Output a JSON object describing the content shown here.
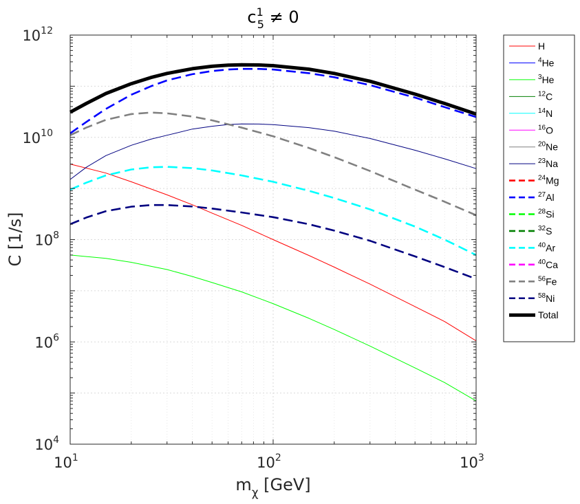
{
  "chart_data": {
    "type": "line",
    "title": {
      "base": "c",
      "sup": "1",
      "sub": "5",
      "rest": " ≠ 0"
    },
    "xlabel": {
      "base": "m",
      "sub": "χ",
      "rest": " [GeV]"
    },
    "ylabel": "C [1/s]",
    "xscale": "log",
    "yscale": "log",
    "xlim": [
      10,
      1000
    ],
    "ylim": [
      10000,
      1000000000000
    ],
    "grid": true,
    "legend_position": "outside-right",
    "xticks": [
      {
        "base": "10",
        "exp": "1",
        "value": 10
      },
      {
        "base": "10",
        "exp": "2",
        "value": 100
      },
      {
        "base": "10",
        "exp": "3",
        "value": 1000
      }
    ],
    "yticks": [
      {
        "base": "10",
        "exp": "4",
        "value": 10000
      },
      {
        "base": "10",
        "exp": "6",
        "value": 1000000
      },
      {
        "base": "10",
        "exp": "8",
        "value": 100000000
      },
      {
        "base": "10",
        "exp": "10",
        "value": 10000000000
      },
      {
        "base": "10",
        "exp": "12",
        "value": 1000000000000
      }
    ],
    "series": [
      {
        "key": "H",
        "sup": "",
        "label": "H",
        "color": "#ff0000",
        "dashed": false,
        "width": "thin",
        "points": [
          [
            10,
            3000000000.0
          ],
          [
            15,
            2000000000.0
          ],
          [
            20,
            1350000000.0
          ],
          [
            30,
            750000000.0
          ],
          [
            40,
            480000000.0
          ],
          [
            50,
            330000000.0
          ],
          [
            70,
            190000000.0
          ],
          [
            100,
            100000000.0
          ],
          [
            150,
            49000000.0
          ],
          [
            200,
            29000000.0
          ],
          [
            300,
            13500000.0
          ],
          [
            500,
            4900000.0
          ],
          [
            700,
            2500000.0
          ],
          [
            1000,
            1050000.0
          ]
        ]
      },
      {
        "key": "He4",
        "sup": "4",
        "label": "He",
        "color": "#0000ff",
        "dashed": false,
        "width": "thin",
        "points": []
      },
      {
        "key": "He3",
        "sup": "3",
        "label": "He",
        "color": "#00ff00",
        "dashed": false,
        "width": "thin",
        "points": [
          [
            10,
            50000000.0
          ],
          [
            15,
            43000000.0
          ],
          [
            20,
            36000000.0
          ],
          [
            30,
            26000000.0
          ],
          [
            40,
            19000000.0
          ],
          [
            50,
            14500000.0
          ],
          [
            70,
            9500000.0
          ],
          [
            100,
            5600000.0
          ],
          [
            150,
            2900000.0
          ],
          [
            200,
            1750000.0
          ],
          [
            300,
            830000.0
          ],
          [
            500,
            310000.0
          ],
          [
            700,
            160000.0
          ],
          [
            1000,
            70000.0
          ]
        ]
      },
      {
        "key": "C12",
        "sup": "12",
        "label": "C",
        "color": "#007f00",
        "dashed": false,
        "width": "thin",
        "points": []
      },
      {
        "key": "N14",
        "sup": "14",
        "label": "N",
        "color": "#00ffff",
        "dashed": false,
        "width": "thin",
        "points": []
      },
      {
        "key": "O16",
        "sup": "16",
        "label": "O",
        "color": "#ff00ff",
        "dashed": false,
        "width": "thin",
        "points": []
      },
      {
        "key": "Ne20",
        "sup": "20",
        "label": "Ne",
        "color": "#808080",
        "dashed": false,
        "width": "thin",
        "points": []
      },
      {
        "key": "Na23",
        "sup": "23",
        "label": "Na",
        "color": "#000080",
        "dashed": false,
        "width": "thin",
        "points": [
          [
            10,
            1500000000.0
          ],
          [
            12,
            2600000000.0
          ],
          [
            15,
            4400000000.0
          ],
          [
            20,
            7000000000.0
          ],
          [
            25,
            9200000000.0
          ],
          [
            30,
            11000000000.0
          ],
          [
            40,
            14500000000.0
          ],
          [
            50,
            16500000000.0
          ],
          [
            60,
            17800000000.0
          ],
          [
            70,
            18300000000.0
          ],
          [
            85,
            18200000000.0
          ],
          [
            100,
            17700000000.0
          ],
          [
            150,
            15500000000.0
          ],
          [
            200,
            13200000000.0
          ],
          [
            300,
            9500000000.0
          ],
          [
            500,
            5600000000.0
          ],
          [
            700,
            3800000000.0
          ],
          [
            1000,
            2450000000.0
          ]
        ]
      },
      {
        "key": "Mg24",
        "sup": "24",
        "label": "Mg",
        "color": "#ff0000",
        "dashed": true,
        "width": "thick",
        "points": []
      },
      {
        "key": "Al27",
        "sup": "27",
        "label": "Al",
        "color": "#0000ff",
        "dashed": true,
        "width": "thick",
        "points": [
          [
            10,
            12000000000.0
          ],
          [
            12,
            20000000000.0
          ],
          [
            15,
            36000000000.0
          ],
          [
            20,
            68000000000.0
          ],
          [
            25,
            100000000000.0
          ],
          [
            30,
            130000000000.0
          ],
          [
            40,
            172000000000.0
          ],
          [
            50,
            198000000000.0
          ],
          [
            60,
            212000000000.0
          ],
          [
            70,
            218000000000.0
          ],
          [
            85,
            218000000000.0
          ],
          [
            100,
            212000000000.0
          ],
          [
            150,
            180000000000.0
          ],
          [
            200,
            150000000000.0
          ],
          [
            300,
            105000000000.0
          ],
          [
            500,
            60000000000.0
          ],
          [
            700,
            39000000000.0
          ],
          [
            1000,
            25000000000.0
          ]
        ]
      },
      {
        "key": "Si28",
        "sup": "28",
        "label": "Si",
        "color": "#00ff00",
        "dashed": true,
        "width": "thick",
        "points": []
      },
      {
        "key": "S32",
        "sup": "32",
        "label": "S",
        "color": "#007f00",
        "dashed": true,
        "width": "thick",
        "points": []
      },
      {
        "key": "Ar40",
        "sup": "40",
        "label": "Ar",
        "color": "#00ffff",
        "dashed": true,
        "width": "thick",
        "points": [
          [
            10,
            950000000.0
          ],
          [
            12,
            1300000000.0
          ],
          [
            15,
            1800000000.0
          ],
          [
            20,
            2350000000.0
          ],
          [
            25,
            2600000000.0
          ],
          [
            30,
            2650000000.0
          ],
          [
            40,
            2500000000.0
          ],
          [
            50,
            2250000000.0
          ],
          [
            70,
            1800000000.0
          ],
          [
            100,
            1350000000.0
          ],
          [
            150,
            900000000.0
          ],
          [
            200,
            650000000.0
          ],
          [
            300,
            390000000.0
          ],
          [
            500,
            180000000.0
          ],
          [
            700,
            100000000.0
          ],
          [
            1000,
            50000000.0
          ]
        ]
      },
      {
        "key": "Ca40",
        "sup": "40",
        "label": "Ca",
        "color": "#ff00ff",
        "dashed": true,
        "width": "thick",
        "points": []
      },
      {
        "key": "Fe56",
        "sup": "56",
        "label": "Fe",
        "color": "#808080",
        "dashed": true,
        "width": "thick",
        "points": [
          [
            10,
            11000000000.0
          ],
          [
            12,
            15500000000.0
          ],
          [
            15,
            22000000000.0
          ],
          [
            20,
            28500000000.0
          ],
          [
            25,
            30500000000.0
          ],
          [
            30,
            29500000000.0
          ],
          [
            40,
            25500000000.0
          ],
          [
            50,
            21500000000.0
          ],
          [
            70,
            15500000000.0
          ],
          [
            100,
            10500000000.0
          ],
          [
            150,
            6200000000.0
          ],
          [
            200,
            4100000000.0
          ],
          [
            300,
            2200000000.0
          ],
          [
            500,
            950000000.0
          ],
          [
            700,
            550000000.0
          ],
          [
            1000,
            300000000.0
          ]
        ]
      },
      {
        "key": "Ni58",
        "sup": "58",
        "label": "Ni",
        "color": "#000080",
        "dashed": true,
        "width": "thick",
        "points": [
          [
            10,
            200000000.0
          ],
          [
            12,
            270000000.0
          ],
          [
            15,
            360000000.0
          ],
          [
            20,
            440000000.0
          ],
          [
            25,
            475000000.0
          ],
          [
            30,
            475000000.0
          ],
          [
            40,
            445000000.0
          ],
          [
            50,
            405000000.0
          ],
          [
            70,
            340000000.0
          ],
          [
            100,
            275000000.0
          ],
          [
            150,
            200000000.0
          ],
          [
            200,
            150000000.0
          ],
          [
            300,
            95000000.0
          ],
          [
            500,
            47000000.0
          ],
          [
            700,
            29000000.0
          ],
          [
            1000,
            17000000.0
          ]
        ]
      },
      {
        "key": "Total",
        "sup": "",
        "label": "Total",
        "color": "#000000",
        "dashed": false,
        "width": "total",
        "points": [
          [
            10,
            31000000000.0
          ],
          [
            12,
            46000000000.0
          ],
          [
            15,
            72000000000.0
          ],
          [
            20,
            112000000000.0
          ],
          [
            25,
            148000000000.0
          ],
          [
            30,
            178000000000.0
          ],
          [
            40,
            220000000000.0
          ],
          [
            50,
            245000000000.0
          ],
          [
            60,
            258000000000.0
          ],
          [
            70,
            262000000000.0
          ],
          [
            85,
            260000000000.0
          ],
          [
            100,
            252000000000.0
          ],
          [
            150,
            215000000000.0
          ],
          [
            200,
            178000000000.0
          ],
          [
            300,
            125000000000.0
          ],
          [
            500,
            70000000000.0
          ],
          [
            700,
            46000000000.0
          ],
          [
            1000,
            28500000000.0
          ]
        ]
      }
    ]
  }
}
